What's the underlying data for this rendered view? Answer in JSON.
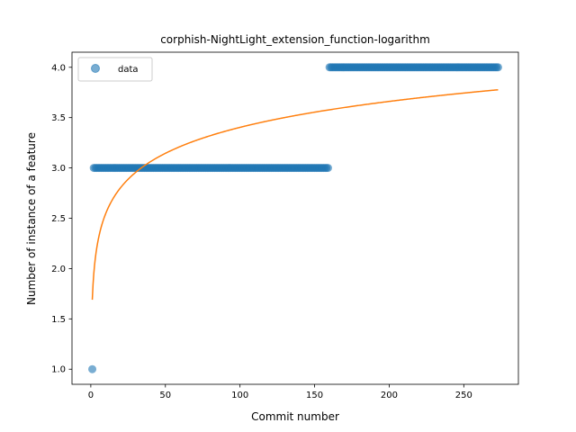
{
  "chart_data": {
    "type": "scatter",
    "title": "corphish-NightLight_extension_function-logarithm",
    "xlabel": "Commit number",
    "ylabel": "Number of instance of a feature",
    "xlim": [
      -12.6,
      286.6
    ],
    "ylim": [
      0.85,
      4.15
    ],
    "xticks": [
      0,
      50,
      100,
      150,
      200,
      250
    ],
    "yticks": [
      1.0,
      1.5,
      2.0,
      2.5,
      3.0,
      3.5,
      4.0
    ],
    "xtick_labels": [
      "0",
      "50",
      "100",
      "150",
      "200",
      "250"
    ],
    "ytick_labels": [
      "1.0",
      "1.5",
      "2.0",
      "2.5",
      "3.0",
      "3.5",
      "4.0"
    ],
    "grid": false,
    "legend_position": "top-left",
    "series": [
      {
        "name": "data",
        "kind": "scatter",
        "color": "#1f77b4",
        "segments": [
          {
            "x_start": 1,
            "x_end": 1,
            "y": 1.0
          },
          {
            "x_start": 2,
            "x_end": 159,
            "y": 3.0
          },
          {
            "x_start": 160,
            "x_end": 273,
            "y": 4.0
          }
        ]
      },
      {
        "name": "",
        "kind": "line",
        "color": "#ff7f0e",
        "function": "a + b*ln(x)",
        "a": 1.69,
        "b": 0.372,
        "x_range": [
          1,
          273
        ]
      }
    ]
  }
}
